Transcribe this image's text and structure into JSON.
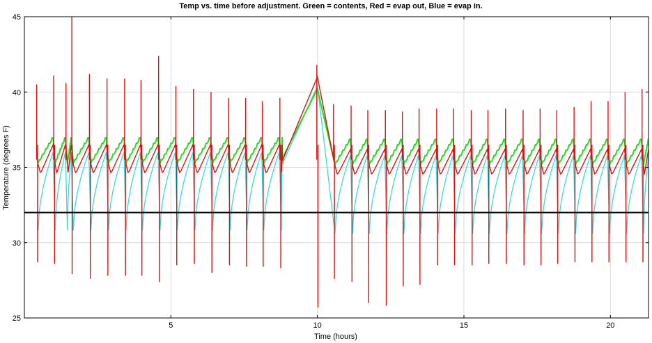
{
  "chart_data": {
    "type": "line",
    "title": "Temp vs. time before adjustment.  Green = contents, Red = evap out, Blue = evap in.",
    "xlabel": "Time (hours)",
    "ylabel": "Temperature (degrees F)",
    "xlim": [
      0,
      21.3
    ],
    "ylim": [
      25,
      45
    ],
    "xticks": [
      5,
      10,
      15,
      20
    ],
    "yticks": [
      25,
      30,
      35,
      40,
      45
    ],
    "grid": true,
    "reference_line": {
      "y": 32,
      "color": "#000000"
    },
    "cycle_period_hours": 0.59,
    "defrost_event": {
      "start": 8.8,
      "end": 10.0,
      "peak": 41.0
    },
    "series": [
      {
        "name": "contents",
        "color": "#22dd22",
        "approx_range": [
          35.2,
          37.0
        ]
      },
      {
        "name": "evap out",
        "color": "#dd1111",
        "approx_range": [
          25.8,
          45.0
        ],
        "baseline_range": [
          34.5,
          36.5
        ],
        "spikes_up": [
          [
            0.42,
            40.5
          ],
          [
            1.0,
            41.1
          ],
          [
            1.42,
            40.6
          ],
          [
            1.62,
            45.0
          ],
          [
            2.22,
            41.2
          ],
          [
            2.82,
            40.9
          ],
          [
            3.42,
            40.9
          ],
          [
            3.98,
            40.8
          ],
          [
            4.58,
            42.4
          ],
          [
            5.17,
            40.4
          ],
          [
            5.77,
            40.2
          ],
          [
            6.37,
            40.0
          ],
          [
            6.97,
            39.6
          ],
          [
            7.55,
            39.6
          ],
          [
            8.12,
            39.4
          ],
          [
            8.72,
            39.6
          ],
          [
            9.98,
            41.8
          ],
          [
            10.55,
            39.2
          ],
          [
            11.15,
            39.1
          ],
          [
            11.72,
            38.8
          ],
          [
            12.32,
            38.8
          ],
          [
            12.9,
            38.7
          ],
          [
            13.47,
            38.9
          ],
          [
            14.07,
            38.9
          ],
          [
            14.65,
            38.9
          ],
          [
            15.25,
            38.8
          ],
          [
            15.82,
            38.8
          ],
          [
            16.42,
            38.9
          ],
          [
            17.02,
            38.8
          ],
          [
            17.6,
            38.9
          ],
          [
            18.17,
            38.8
          ],
          [
            18.76,
            39.0
          ],
          [
            19.34,
            39.4
          ],
          [
            19.92,
            39.4
          ],
          [
            20.5,
            40.0
          ],
          [
            21.08,
            40.2
          ]
        ],
        "spikes_down": [
          [
            0.45,
            28.7
          ],
          [
            1.03,
            28.6
          ],
          [
            1.63,
            27.9
          ],
          [
            2.25,
            27.6
          ],
          [
            2.85,
            27.8
          ],
          [
            3.45,
            27.8
          ],
          [
            4.01,
            27.8
          ],
          [
            4.61,
            27.4
          ],
          [
            5.2,
            28.5
          ],
          [
            5.8,
            28.6
          ],
          [
            6.4,
            28.0
          ],
          [
            7.0,
            28.5
          ],
          [
            7.58,
            28.4
          ],
          [
            8.15,
            28.4
          ],
          [
            8.75,
            28.3
          ],
          [
            10.02,
            25.7
          ],
          [
            10.58,
            27.6
          ],
          [
            11.18,
            27.4
          ],
          [
            11.75,
            26.0
          ],
          [
            12.35,
            25.8
          ],
          [
            12.93,
            27.1
          ],
          [
            13.5,
            27.2
          ],
          [
            14.1,
            28.5
          ],
          [
            14.68,
            28.5
          ],
          [
            15.28,
            28.5
          ],
          [
            15.85,
            28.6
          ],
          [
            16.45,
            28.6
          ],
          [
            17.05,
            28.5
          ],
          [
            17.63,
            28.5
          ],
          [
            18.2,
            28.6
          ],
          [
            18.79,
            28.7
          ],
          [
            19.37,
            28.7
          ],
          [
            19.95,
            28.7
          ],
          [
            20.53,
            28.7
          ],
          [
            21.11,
            28.7
          ]
        ]
      },
      {
        "name": "evap in",
        "color": "#33dddd",
        "approx_range": [
          28.4,
          40.0
        ]
      }
    ]
  }
}
